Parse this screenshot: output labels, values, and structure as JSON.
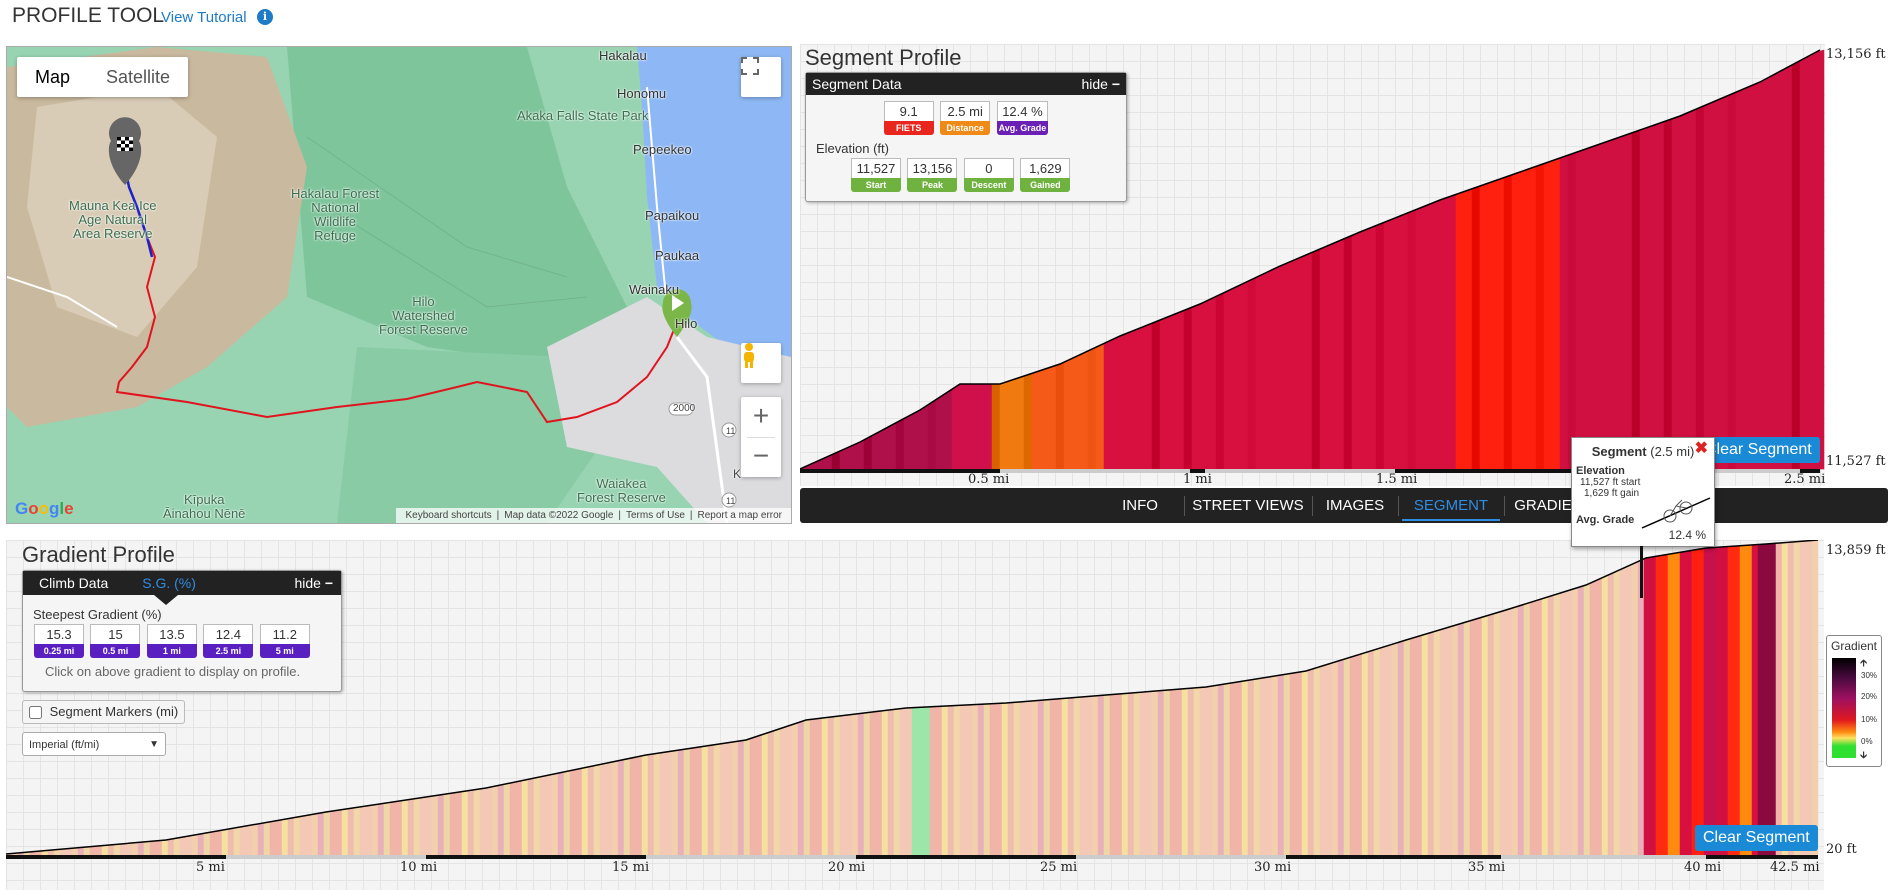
{
  "app": {
    "title": "PROFILE TOOL",
    "tutorial_link": "View Tutorial",
    "info_icon": "info-icon"
  },
  "map": {
    "type_buttons": [
      {
        "label": "Map",
        "active": true
      },
      {
        "label": "Satellite",
        "active": false
      }
    ],
    "labels": {
      "hakalau": "Hakalau",
      "honomu": "Honomu",
      "akaka": "Akaka Falls State Park",
      "pepeekeo": "Pepeekeo",
      "papaikou": "Papaikou",
      "paukaa": "Paukaa",
      "wainaku": "Wainaku",
      "hilo": "Hilo",
      "route": "2000",
      "route11": "11",
      "route11b": "11",
      "k": "K",
      "mauna_1": "Mauna Kea Ice",
      "mauna_2": "Age Natural",
      "mauna_3": "Area Reserve",
      "hakalau_forest_1": "Hakalau Forest",
      "hakalau_forest_2": "National",
      "hakalau_forest_3": "Wildlife",
      "hakalau_forest_4": "Refuge",
      "hilo_ws_1": "Hilo",
      "hilo_ws_2": "Watershed",
      "hilo_ws_3": "Forest Reserve",
      "waiakea_1": "Waiakea",
      "waiakea_2": "Forest Reserve",
      "kipuka_1": "Kīpuka",
      "kipuka_2": "Āinahou Nēnē"
    },
    "footer": [
      "Keyboard shortcuts",
      "Map data ©2022 Google",
      "Terms of Use",
      "Report a map error"
    ],
    "logo": "Google",
    "colors": {
      "route": "#e0141e",
      "segment": "#1a22c8"
    }
  },
  "segment": {
    "title": "Segment Profile",
    "panel_title": "Segment Data",
    "hide_label": "hide",
    "stats": [
      {
        "value": "9.1",
        "label": "FIETS",
        "color": "#e8261e"
      },
      {
        "value": "2.5 mi",
        "label": "Distance",
        "color": "#f08a16"
      },
      {
        "value": "12.4 %",
        "label": "Avg. Grade",
        "color": "#6a1fb5"
      }
    ],
    "elevation_label": "Elevation (ft)",
    "elevation": [
      {
        "value": "11,527",
        "label": "Start"
      },
      {
        "value": "13,156",
        "label": "Peak"
      },
      {
        "value": "0",
        "label": "Descent"
      },
      {
        "value": "1,629",
        "label": "Gained"
      }
    ],
    "y_top": "13,156 ft",
    "y_bottom": "11,527 ft",
    "x_ticks": [
      "0.5 mi",
      "1 mi",
      "1.5 mi",
      "2.5 mi"
    ],
    "clear_button": "Clear Segment"
  },
  "tabs": [
    "INFO",
    "STREET VIEWS",
    "IMAGES",
    "SEGMENT",
    "GRADIE"
  ],
  "active_tab": "SEGMENT",
  "tooltip": {
    "title": "Segment",
    "distance": "(2.5 mi)",
    "elevation_label": "Elevation",
    "start_value": "11,527 ft",
    "start_label": "start",
    "gain_value": "1,629 ft",
    "gain_label": "gain",
    "grade_label": "Avg. Grade",
    "grade_value": "12.4 %"
  },
  "gradient": {
    "title": "Gradient Profile",
    "tabs": [
      "Climb Data",
      "S.G. (%)"
    ],
    "hide_label": "hide",
    "steepest_label": "Steepest Gradient (%)",
    "steepest": [
      {
        "value": "15.3",
        "label": "0.25 mi"
      },
      {
        "value": "15",
        "label": "0.5 mi"
      },
      {
        "value": "13.5",
        "label": "1 mi"
      },
      {
        "value": "12.4",
        "label": "2.5 mi"
      },
      {
        "value": "11.2",
        "label": "5 mi"
      }
    ],
    "hint": "Click on above gradient to display on profile.",
    "segment_markers": "Segment Markers (mi)",
    "units_select": "Imperial (ft/mi)",
    "y_top": "13,859 ft",
    "y_bottom": "20 ft",
    "x_ticks": [
      "5 mi",
      "10 mi",
      "15 mi",
      "20 mi",
      "25 mi",
      "30 mi",
      "35 mi",
      "40 mi",
      "42.5 mi"
    ],
    "clear_button": "Clear Segment",
    "legend": {
      "title": "Gradient",
      "labels": [
        "30%",
        "20%",
        "10%",
        "0%"
      ]
    }
  }
}
